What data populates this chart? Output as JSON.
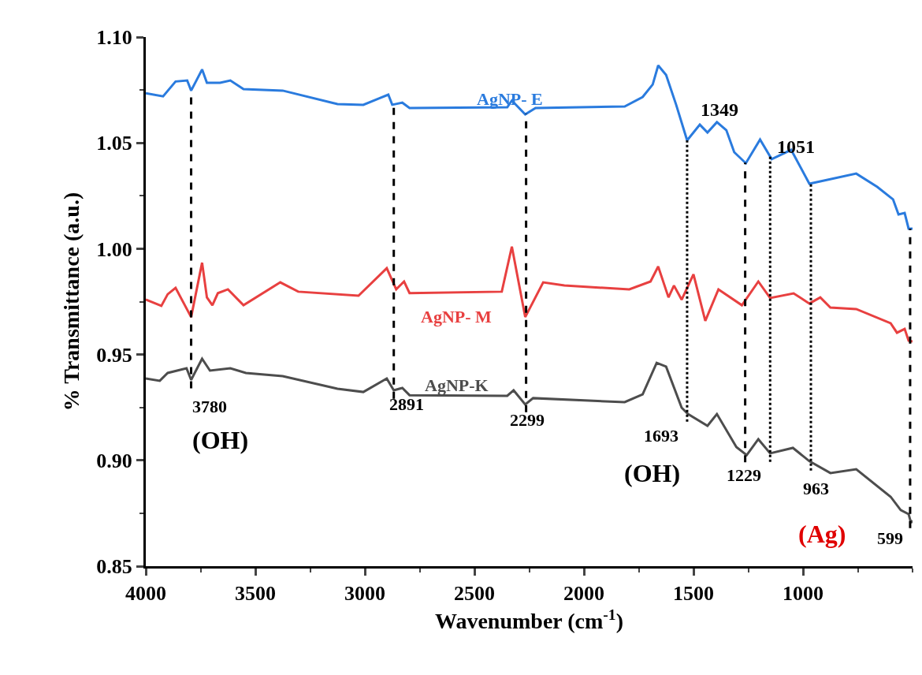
{
  "chart_data": {
    "type": "line",
    "xlabel": "Wavenumber (cm$^{-1}$)",
    "ylabel": "% Transmittance (a.u.)",
    "xlim": [
      4000,
      500
    ],
    "xticks": [
      4000,
      3500,
      3000,
      2500,
      2000,
      1500,
      1000
    ],
    "ylim": [
      0.85,
      1.1
    ],
    "yticks": [
      0.85,
      {
        "value": 0.9,
        "label": "0.90"
      },
      0.95,
      {
        "value": 1.0,
        "label": "1.00"
      },
      1.05,
      {
        "value": 1.1,
        "label": "1.10"
      }
    ],
    "grid": false,
    "legend": false,
    "marker": "none",
    "line_style": "solid",
    "series": [
      {
        "name": "AgNP- E",
        "color": "#2a7bde",
        "x": [
          4000,
          3921,
          3864,
          3811,
          3793,
          3743,
          3721,
          3661,
          3614,
          3554,
          3375,
          3125,
          3007,
          2936,
          2893,
          2875,
          2829,
          2796,
          2350,
          2329,
          2268,
          2221,
          1814,
          1732,
          1686,
          1661,
          1625,
          1579,
          1529,
          1471,
          1436,
          1393,
          1350,
          1314,
          1261,
          1196,
          1143,
          1054,
          971,
          921,
          757,
          661,
          589,
          564,
          536,
          518,
          500
        ],
        "values": [
          1.0735,
          1.072,
          1.079,
          1.0795,
          1.0747,
          1.0847,
          1.0784,
          1.0784,
          1.0795,
          1.0754,
          1.0747,
          1.0683,
          1.068,
          1.071,
          1.0728,
          1.068,
          1.069,
          1.0665,
          1.0668,
          1.07,
          1.0635,
          1.0665,
          1.0672,
          1.0717,
          1.0776,
          1.0866,
          1.0821,
          1.068,
          1.0512,
          1.0586,
          1.0549,
          1.0598,
          1.056,
          1.0456,
          1.0404,
          1.0516,
          1.0423,
          1.0467,
          1.0307,
          1.0318,
          1.0355,
          1.0292,
          1.0233,
          1.0162,
          1.0169,
          1.0095,
          1.0095
        ]
      },
      {
        "name": "AgNP- M",
        "color": "#e84040",
        "x": [
          4000,
          3929,
          3900,
          3864,
          3793,
          3743,
          3721,
          3696,
          3671,
          3625,
          3554,
          3386,
          3304,
          3029,
          2900,
          2857,
          2821,
          2796,
          2375,
          2329,
          2268,
          2186,
          2089,
          1793,
          1696,
          1661,
          1614,
          1589,
          1554,
          1500,
          1446,
          1386,
          1279,
          1204,
          1150,
          1043,
          971,
          921,
          875,
          757,
          600,
          571,
          536,
          518,
          500
        ],
        "values": [
          0.976,
          0.973,
          0.9785,
          0.9815,
          0.9677,
          0.9934,
          0.977,
          0.9733,
          0.979,
          0.9808,
          0.9733,
          0.9841,
          0.9797,
          0.9778,
          0.9908,
          0.9808,
          0.9845,
          0.979,
          0.9797,
          1.001,
          0.9677,
          0.9841,
          0.9826,
          0.9808,
          0.9845,
          0.9916,
          0.977,
          0.9826,
          0.9759,
          0.9879,
          0.9659,
          0.9808,
          0.9733,
          0.9845,
          0.9767,
          0.9789,
          0.9741,
          0.977,
          0.9722,
          0.9715,
          0.9648,
          0.9603,
          0.9621,
          0.9566,
          0.9562
        ]
      },
      {
        "name": "AgNP-K",
        "color": "#4d4d4d",
        "x": [
          4000,
          3936,
          3900,
          3814,
          3793,
          3743,
          3707,
          3614,
          3543,
          3375,
          3125,
          3007,
          2900,
          2868,
          2829,
          2796,
          2350,
          2321,
          2268,
          2232,
          1814,
          1732,
          1668,
          1625,
          1554,
          1525,
          1436,
          1393,
          1304,
          1257,
          1204,
          1150,
          1046,
          971,
          875,
          757,
          600,
          554,
          518,
          507,
          500
        ],
        "values": [
          0.9387,
          0.9376,
          0.9413,
          0.9435,
          0.938,
          0.948,
          0.9424,
          0.9435,
          0.9413,
          0.9398,
          0.9338,
          0.9323,
          0.9387,
          0.9331,
          0.9342,
          0.9308,
          0.9305,
          0.9331,
          0.9264,
          0.9294,
          0.9275,
          0.9312,
          0.9461,
          0.9443,
          0.9249,
          0.9219,
          0.9163,
          0.9219,
          0.9063,
          0.9025,
          0.91,
          0.9033,
          0.9059,
          0.8996,
          0.894,
          0.8958,
          0.8828,
          0.8765,
          0.8746,
          0.8705,
          0.8716
        ]
      }
    ],
    "ref_lines": [
      {
        "axis": "x",
        "value": 3793,
        "line_style": "dashed"
      },
      {
        "axis": "x",
        "value": 2868,
        "line_style": "dashed"
      },
      {
        "axis": "x",
        "value": 2264,
        "line_style": "dashed"
      },
      {
        "axis": "x",
        "value": 1529,
        "line_style": "dotted"
      },
      {
        "axis": "x",
        "value": 1264,
        "line_style": "dashed"
      },
      {
        "axis": "x",
        "value": 1150,
        "line_style": "dotted"
      },
      {
        "axis": "x",
        "value": 964,
        "line_style": "dotted"
      },
      {
        "axis": "x",
        "value": 511,
        "line_style": "dashed"
      }
    ],
    "annotations": [
      "3780",
      "(OH)",
      "2891",
      "2299",
      "1693",
      "(OH)",
      "1349",
      "1229",
      "1051",
      "963",
      "(Ag)",
      "599"
    ]
  }
}
